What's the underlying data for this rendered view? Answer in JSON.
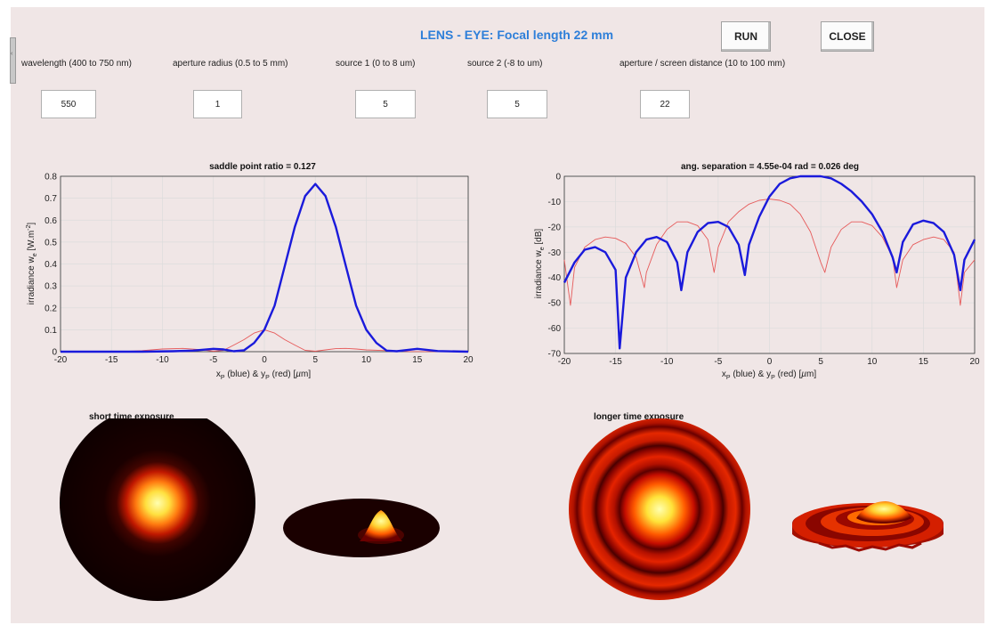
{
  "app": {
    "title": "LENS - EYE: Focal length 22 mm",
    "run_label": "RUN",
    "close_label": "CLOSE"
  },
  "params": [
    {
      "label": "wavelength (400 to 750 nm)",
      "value": "550"
    },
    {
      "label": "aperture radius (0.5 to 5 mm)",
      "value": "1"
    },
    {
      "label": "source 1 (0 to 8 um)",
      "value": "5"
    },
    {
      "label": "source 2 (-8 to um)",
      "value": "5"
    },
    {
      "label": "aperture / screen distance (10 to 100 mm)",
      "value": "22"
    }
  ],
  "captions": {
    "short": "short time exposure",
    "longer": "longer time exposure"
  },
  "colors": {
    "blue": "#1a1adb",
    "red": "#e65a5a",
    "title": "#2e7fd9"
  },
  "chart_data": [
    {
      "type": "line",
      "title": "saddle point ratio =  0.127",
      "ylabel": "irradiance w_e  [W.m^-2]",
      "xlabel": "x_P (blue) &  y_P (red)  [µm]",
      "xlim": [
        -20,
        20
      ],
      "ylim": [
        0,
        0.8
      ],
      "xticks": [
        -20,
        -15,
        -10,
        -5,
        0,
        5,
        10,
        15,
        20
      ],
      "yticks": [
        0,
        0.1,
        0.2,
        0.3,
        0.4,
        0.5,
        0.6,
        0.7,
        0.8
      ],
      "grid": true,
      "series": [
        {
          "color": "blue",
          "x": [
            -20,
            -12,
            -9,
            -7,
            -5,
            -4,
            -3,
            -2,
            -1,
            0,
            1,
            2,
            3,
            4,
            5,
            6,
            7,
            8,
            9,
            10,
            11,
            12,
            13,
            15,
            17,
            20
          ],
          "y": [
            0,
            0,
            0.002,
            0.005,
            0.013,
            0.01,
            0.002,
            0.006,
            0.04,
            0.1,
            0.21,
            0.39,
            0.57,
            0.71,
            0.765,
            0.71,
            0.57,
            0.39,
            0.21,
            0.1,
            0.04,
            0.005,
            0.002,
            0.013,
            0.003,
            0
          ]
        },
        {
          "color": "red",
          "x": [
            -20,
            -14,
            -12,
            -10,
            -8,
            -6,
            -5,
            -4,
            -3,
            -2,
            -1,
            0,
            1,
            2,
            3,
            4,
            5,
            6,
            7,
            8,
            9,
            10,
            12,
            14,
            20
          ],
          "y": [
            0,
            0.001,
            0.005,
            0.012,
            0.015,
            0.008,
            0.002,
            0.006,
            0.03,
            0.055,
            0.085,
            0.1,
            0.085,
            0.055,
            0.03,
            0.006,
            0.002,
            0.008,
            0.014,
            0.015,
            0.012,
            0.008,
            0.005,
            0.001,
            0
          ]
        }
      ]
    },
    {
      "type": "line",
      "title": "ang. separation  =  4.55e-04 rad =  0.026  deg",
      "ylabel": "irradiance w_e  [dB]",
      "xlabel": "x_P (blue) &  y_P (red)  [µm]",
      "xlim": [
        -20,
        20
      ],
      "ylim": [
        -70,
        0
      ],
      "xticks": [
        -20,
        -15,
        -10,
        -5,
        0,
        5,
        10,
        15,
        20
      ],
      "yticks": [
        -70,
        -60,
        -50,
        -40,
        -30,
        -20,
        -10,
        0
      ],
      "grid": true,
      "series": [
        {
          "color": "blue",
          "x": [
            -20,
            -19,
            -18,
            -17,
            -16,
            -15,
            -14.6,
            -14,
            -13,
            -12,
            -11,
            -10,
            -9,
            -8.6,
            -8,
            -7,
            -6,
            -5,
            -4,
            -3,
            -2.4,
            -2,
            -1,
            0,
            1,
            2,
            3,
            4,
            5,
            6,
            7,
            8,
            9,
            10,
            11,
            12,
            12.4,
            13,
            14,
            15,
            16,
            17,
            18,
            18.6,
            19,
            20
          ],
          "y": [
            -42,
            -34,
            -29,
            -28,
            -30,
            -37,
            -68,
            -40,
            -30,
            -25,
            -24,
            -26,
            -34,
            -45,
            -30,
            -22,
            -18.5,
            -18,
            -20,
            -27,
            -39,
            -27,
            -16,
            -8,
            -3,
            -0.8,
            0,
            0,
            0,
            -0.8,
            -3,
            -6,
            -10,
            -15,
            -22,
            -32,
            -38,
            -26,
            -19,
            -17.5,
            -18.5,
            -22,
            -31,
            -45,
            -33,
            -25
          ]
        },
        {
          "color": "red",
          "x": [
            -20,
            -19.4,
            -19,
            -18,
            -17,
            -16,
            -15,
            -14,
            -13,
            -12.2,
            -12,
            -11,
            -10,
            -9,
            -8,
            -7,
            -6,
            -5.4,
            -5,
            -4,
            -3,
            -2,
            -1,
            0,
            1,
            2,
            3,
            4,
            5,
            5.4,
            6,
            7,
            8,
            9,
            10,
            11,
            12,
            12.4,
            13,
            14,
            15,
            16,
            17,
            18,
            18.6,
            19,
            20
          ],
          "y": [
            -33,
            -51,
            -36,
            -28,
            -25,
            -24,
            -24.5,
            -26.5,
            -32,
            -44,
            -38,
            -27,
            -21,
            -18,
            -18,
            -19.5,
            -25,
            -38,
            -28,
            -18,
            -14,
            -11,
            -9.5,
            -9,
            -9.5,
            -11,
            -15,
            -22,
            -34,
            -38,
            -28,
            -21,
            -18,
            -18,
            -19.5,
            -24,
            -32,
            -44,
            -33,
            -27,
            -25,
            -24,
            -25,
            -30,
            -51,
            -38,
            -33
          ]
        }
      ]
    }
  ]
}
